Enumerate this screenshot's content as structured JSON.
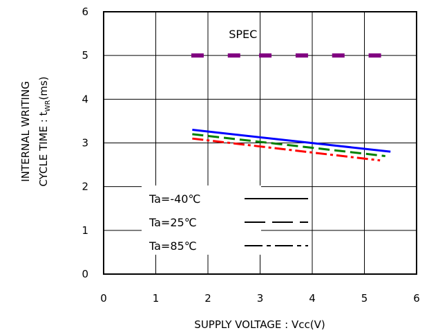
{
  "chart_data": {
    "type": "line",
    "xlabel": "SUPPLY VOLTAGE : Vcc(V)",
    "ylabel_line1": "INTERNAL WRITING",
    "ylabel_line2_prefix": "CYCLE TIME : t",
    "ylabel_line2_sub": "WR",
    "ylabel_line2_suffix": "(ms)",
    "xlim": [
      0,
      6
    ],
    "ylim": [
      0,
      6
    ],
    "x_ticks": [
      "0",
      "1",
      "2",
      "3",
      "4",
      "5",
      "6"
    ],
    "y_ticks": [
      "0",
      "1",
      "2",
      "3",
      "4",
      "5",
      "6"
    ],
    "grid": true,
    "annotation": "SPEC",
    "spec": {
      "y": 5,
      "x": [
        1.8,
        2.5,
        3.1,
        3.8,
        4.5,
        5.2
      ],
      "color": "#800080"
    },
    "series": [
      {
        "name": "Ta=-40℃",
        "style": "solid",
        "color": "#0000ff",
        "x": [
          1.7,
          5.5
        ],
        "y": [
          3.3,
          2.8
        ]
      },
      {
        "name": "Ta=25℃",
        "style": "dashed",
        "color": "#008000",
        "x": [
          1.7,
          5.4
        ],
        "y": [
          3.2,
          2.7
        ]
      },
      {
        "name": "Ta=85℃",
        "style": "dashdot",
        "color": "#ff0000",
        "x": [
          1.7,
          5.3
        ],
        "y": [
          3.1,
          2.6
        ]
      }
    ],
    "legend_placement": "lower-left"
  }
}
